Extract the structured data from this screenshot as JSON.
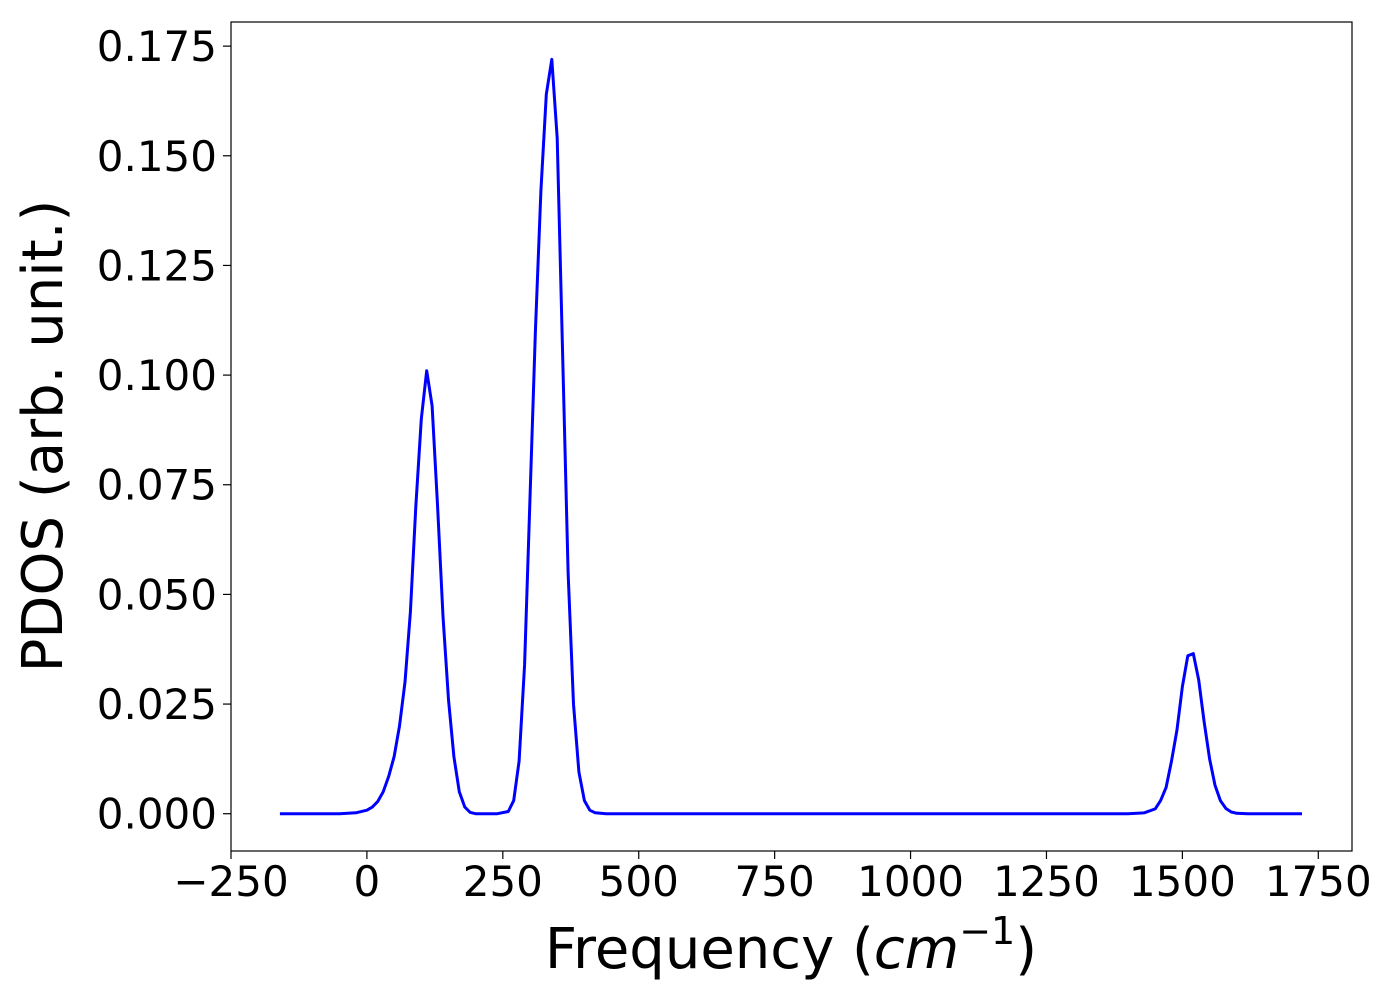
{
  "chart_data": {
    "type": "line",
    "xlabel": "Frequency",
    "xlabel_unit_base": "cm",
    "xlabel_unit_exponent": "−1",
    "ylabel": "PDOS (arb. unit.)",
    "xlim": [
      -250,
      1812
    ],
    "ylim": [
      -0.0085,
      0.1805
    ],
    "x_ticks": [
      -250,
      0,
      250,
      500,
      750,
      1000,
      1250,
      1500,
      1750
    ],
    "x_tick_labels": [
      "−250",
      "0",
      "250",
      "500",
      "750",
      "1000",
      "1250",
      "1500",
      "1750"
    ],
    "y_ticks": [
      0.0,
      0.025,
      0.05,
      0.075,
      0.1,
      0.125,
      0.15,
      0.175
    ],
    "y_tick_labels": [
      "0.000",
      "0.025",
      "0.050",
      "0.075",
      "0.100",
      "0.125",
      "0.150",
      "0.175"
    ],
    "grid": false,
    "legend": "none",
    "series": [
      {
        "color": "#0000ff",
        "x": [
          -160,
          -100,
          -50,
          -20,
          0,
          10,
          20,
          30,
          40,
          50,
          60,
          70,
          80,
          90,
          100,
          110,
          120,
          130,
          140,
          150,
          160,
          170,
          180,
          190,
          200,
          220,
          240,
          260,
          270,
          280,
          290,
          300,
          310,
          320,
          330,
          340,
          350,
          360,
          370,
          380,
          390,
          400,
          410,
          420,
          440,
          500,
          800,
          1100,
          1400,
          1430,
          1450,
          1460,
          1470,
          1480,
          1490,
          1500,
          1510,
          1520,
          1530,
          1540,
          1550,
          1560,
          1570,
          1580,
          1590,
          1600,
          1620,
          1720
        ],
        "y": [
          0.0,
          0.0,
          0.0,
          0.0002,
          0.0008,
          0.0015,
          0.0028,
          0.005,
          0.0085,
          0.013,
          0.02,
          0.03,
          0.046,
          0.07,
          0.09,
          0.101,
          0.093,
          0.07,
          0.045,
          0.026,
          0.013,
          0.005,
          0.0015,
          0.0003,
          0.0,
          0.0,
          0.0,
          0.0005,
          0.003,
          0.012,
          0.034,
          0.072,
          0.11,
          0.142,
          0.164,
          0.172,
          0.154,
          0.105,
          0.055,
          0.025,
          0.0095,
          0.003,
          0.0008,
          0.0002,
          0.0,
          0.0,
          0.0,
          0.0,
          0.0,
          0.0002,
          0.0011,
          0.003,
          0.006,
          0.012,
          0.019,
          0.029,
          0.036,
          0.0365,
          0.0305,
          0.021,
          0.0125,
          0.0065,
          0.003,
          0.0012,
          0.0004,
          0.0001,
          0.0,
          0.0
        ]
      }
    ]
  }
}
